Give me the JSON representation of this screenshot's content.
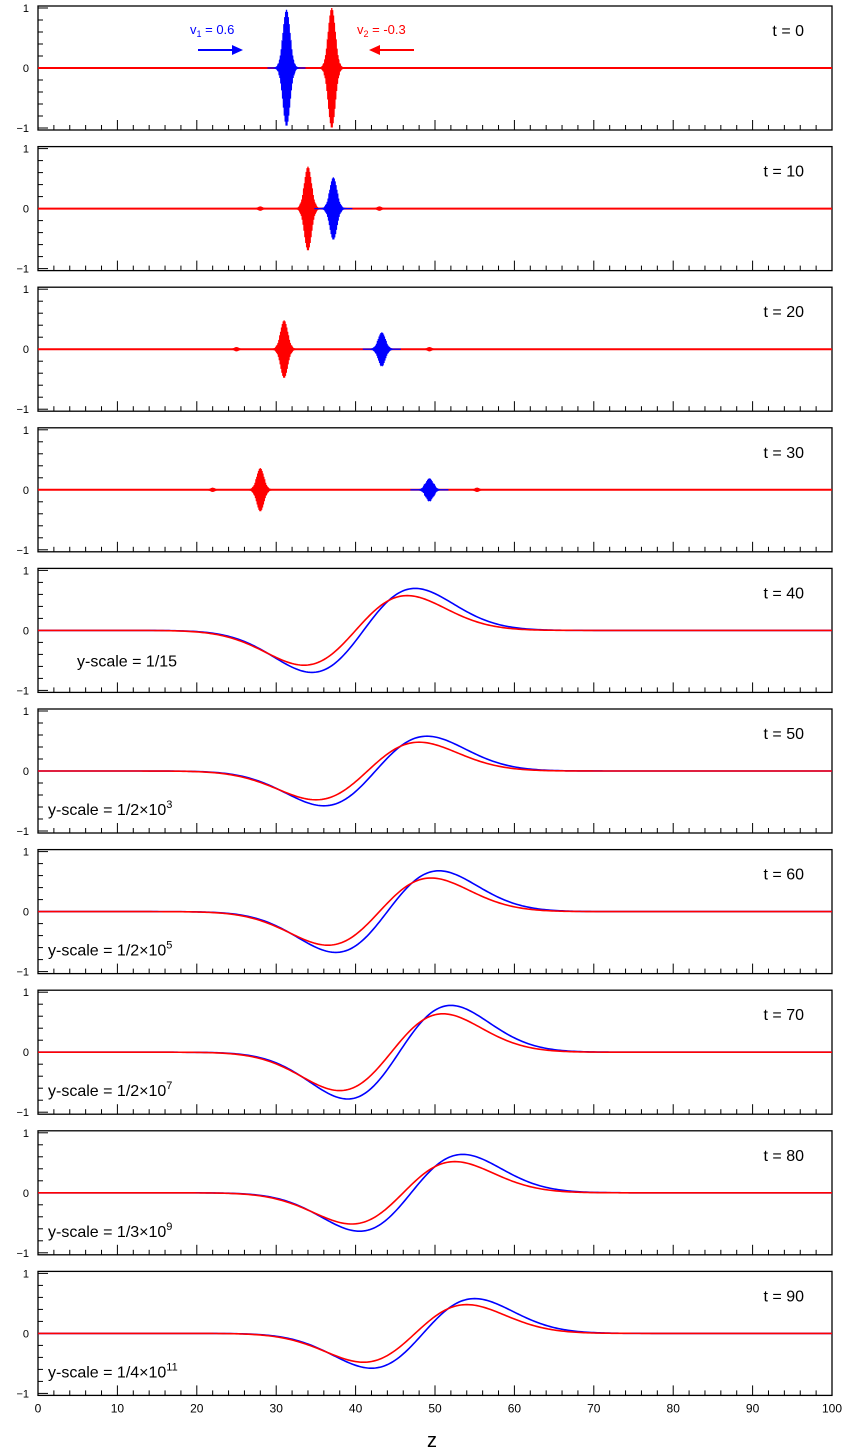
{
  "chart_data": {
    "type": "line",
    "xlabel": "z",
    "xlim": [
      0,
      100
    ],
    "x_ticks": [
      "0",
      "10",
      "20",
      "30",
      "40",
      "50",
      "60",
      "70",
      "80",
      "90",
      "100"
    ],
    "ylim": [
      -1,
      1
    ],
    "y_ticks": [
      "−1",
      "0",
      "1"
    ],
    "colors": {
      "series_1": "#0000ff",
      "series_2": "#ff0000"
    },
    "annotations": {
      "v1_label": "v",
      "v1_sub": "1",
      "v1_value": " = 0.6",
      "v2_label": "v",
      "v2_sub": "2",
      "v2_value": " = -0.3"
    },
    "panels": [
      {
        "time_label": "t = 0",
        "mode": "packet",
        "packets": [
          {
            "series": "series_1",
            "center": 31.3,
            "amp": 0.97
          },
          {
            "series": "series_2",
            "center": 37.0,
            "amp": 1.0
          }
        ],
        "ripples": []
      },
      {
        "time_label": "t = 10",
        "mode": "packet",
        "packets": [
          {
            "series": "series_2",
            "center": 34.0,
            "amp": 0.7
          },
          {
            "series": "series_1",
            "center": 37.2,
            "amp": 0.52
          }
        ],
        "ripples": [
          28.0,
          43.0
        ]
      },
      {
        "time_label": "t = 20",
        "mode": "packet",
        "packets": [
          {
            "series": "series_2",
            "center": 31.0,
            "amp": 0.48
          },
          {
            "series": "series_1",
            "center": 43.3,
            "amp": 0.28
          }
        ],
        "ripples": [
          25.0,
          49.3
        ]
      },
      {
        "time_label": "t = 30",
        "mode": "packet",
        "packets": [
          {
            "series": "series_2",
            "center": 28.0,
            "amp": 0.36
          },
          {
            "series": "series_1",
            "center": 49.3,
            "amp": 0.19
          }
        ],
        "ripples": [
          22.0,
          55.3
        ]
      },
      {
        "time_label": "t = 40",
        "mode": "smooth",
        "scale_text": "y-scale = 1/15",
        "scale_exp": "",
        "blue_peak": 0.7,
        "red_peak": 0.58,
        "blue_center": 41.0,
        "red_center": 40.0
      },
      {
        "time_label": "t = 50",
        "mode": "smooth",
        "scale_text": "y-scale = 1/2×10",
        "scale_exp": "3",
        "blue_peak": 0.58,
        "red_peak": 0.48,
        "blue_center": 42.5,
        "red_center": 41.5
      },
      {
        "time_label": "t = 60",
        "mode": "smooth",
        "scale_text": "y-scale = 1/2×10",
        "scale_exp": "5",
        "blue_peak": 0.68,
        "red_peak": 0.56,
        "blue_center": 44.0,
        "red_center": 43.0
      },
      {
        "time_label": "t = 70",
        "mode": "smooth",
        "scale_text": "y-scale = 1/2×10",
        "scale_exp": "7",
        "blue_peak": 0.78,
        "red_peak": 0.64,
        "blue_center": 45.5,
        "red_center": 44.5
      },
      {
        "time_label": "t = 80",
        "mode": "smooth",
        "scale_text": "y-scale = 1/3×10",
        "scale_exp": "9",
        "blue_peak": 0.64,
        "red_peak": 0.52,
        "blue_center": 47.0,
        "red_center": 46.0
      },
      {
        "time_label": "t = 90",
        "mode": "smooth",
        "scale_text": "y-scale = 1/4×10",
        "scale_exp": "11",
        "blue_peak": 0.58,
        "red_peak": 0.48,
        "blue_center": 48.5,
        "red_center": 47.5
      }
    ]
  }
}
